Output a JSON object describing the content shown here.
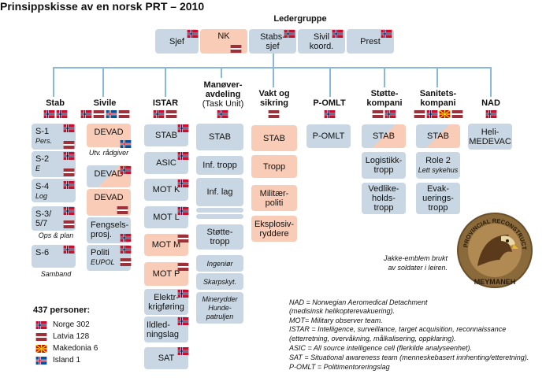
{
  "title": "Prinsippskisse av en norsk PRT – 2010",
  "top": {
    "header": "Ledergruppe",
    "boxes": {
      "sjef": "Sjef",
      "nk": "NK",
      "stabssjef": "Stabs-\nsjef",
      "sivil": "Sivil\nkoord.",
      "prest": "Prest"
    }
  },
  "columns": {
    "stab": {
      "header": "Stab",
      "s1": "S-1",
      "s1_sub": "Pers.",
      "s2": "S-2",
      "s2_sub": "E",
      "s4": "S-4",
      "s4_sub": "Log",
      "s3": "S-3/\n5/7",
      "s3_caption": "Ops & plan",
      "s6": "S-6",
      "s6_caption": "Samband"
    },
    "sivile": {
      "header": "Sivile",
      "devad1": "DEVAD",
      "devad1_caption": "Utv. rådgiver",
      "devad2": "DEVAD",
      "devad3": "DEVAD",
      "fengsel": "Fengsels-\nprosj.",
      "politi": "Politi",
      "politi_sub": "EUPOL"
    },
    "istar": {
      "header": "ISTAR",
      "items": [
        "STAB",
        "ASIC",
        "MOT K",
        "MOT L",
        "MOT M",
        "MOT P",
        "Elektr-\nkrigføring",
        "Ildled-\nningslag",
        "SAT"
      ]
    },
    "manover": {
      "header": "Manøver-\navdeling",
      "header_sub": "(Task Unit)",
      "stab": "STAB",
      "inf_tropp": "Inf. tropp",
      "inf_lag": "Inf. lag",
      "stotte": "Støtte-\ntropp",
      "ingenior": "Ingeniør",
      "skarpskyt": "Skarpskyt.",
      "minerydder": "Minerydder\nHunde-\npatruljen"
    },
    "vakt": {
      "header": "Vakt og\nsikring",
      "stab": "STAB",
      "tropp": "Tropp",
      "politi": "Militær-\npoliti",
      "eksplosiv": "Eksplosiv-\nryddere"
    },
    "pomlt": {
      "header": "P-OMLT",
      "box": "P-OMLT"
    },
    "stotte": {
      "header": "Støtte-\nkompani",
      "stab": "STAB",
      "logistikk": "Logistikk-\ntropp",
      "vedlike": "Vedlike-\nholds-\ntropp"
    },
    "sanitet": {
      "header": "Sanitets-\nkompani",
      "stab": "STAB",
      "role2": "Role 2",
      "role2_sub": "Lett sykehus",
      "evak": "Evak-\nuerings-\ntropp"
    },
    "nad": {
      "header": "NAD",
      "box": "Heli-\nMEDEVAC"
    }
  },
  "emblem": {
    "ring_text": "PROVINCIAL RECONSTRUCTION TEAM",
    "bottom_text": "MEYMANEH",
    "caption": "Jakke-emblem brukt\nav soldater i leiren."
  },
  "legend": {
    "title": "437 personer:",
    "items": [
      {
        "flag": "norway",
        "label": "Norge 302"
      },
      {
        "flag": "latvia",
        "label": "Latvia 128"
      },
      {
        "flag": "macedonia",
        "label": "Makedonia 6"
      },
      {
        "flag": "iceland",
        "label": "Island 1"
      }
    ]
  },
  "notes": [
    "NAD = Norwegian Aeromedical Detachment",
    "(medisinsk helikopterevakuering).",
    "MOT= Military observer team.",
    "ISTAR = Intelligence, surveillance, target acquisition, reconnaissance",
    "(etterretning, overvåkning, målkalisering, oppklaring).",
    "ASIC = All source intelligence cell (flerkilde analyseenhet).",
    "SAT = Situational awareness team (menneskebasert innhenting/etteretning).",
    "P-OMLT = Politimentoreringslag"
  ],
  "colors": {
    "blue_box": "#c9d7e4",
    "peach_box": "#f8ccb7",
    "line": "#8ab8d8",
    "norway_red": "#c8102e",
    "norway_blue": "#00205b",
    "latvia_red": "#9e3039",
    "macedonia_red": "#d20000",
    "macedonia_yellow": "#ffe600",
    "iceland_blue": "#02529c",
    "iceland_red": "#dc1e35"
  }
}
